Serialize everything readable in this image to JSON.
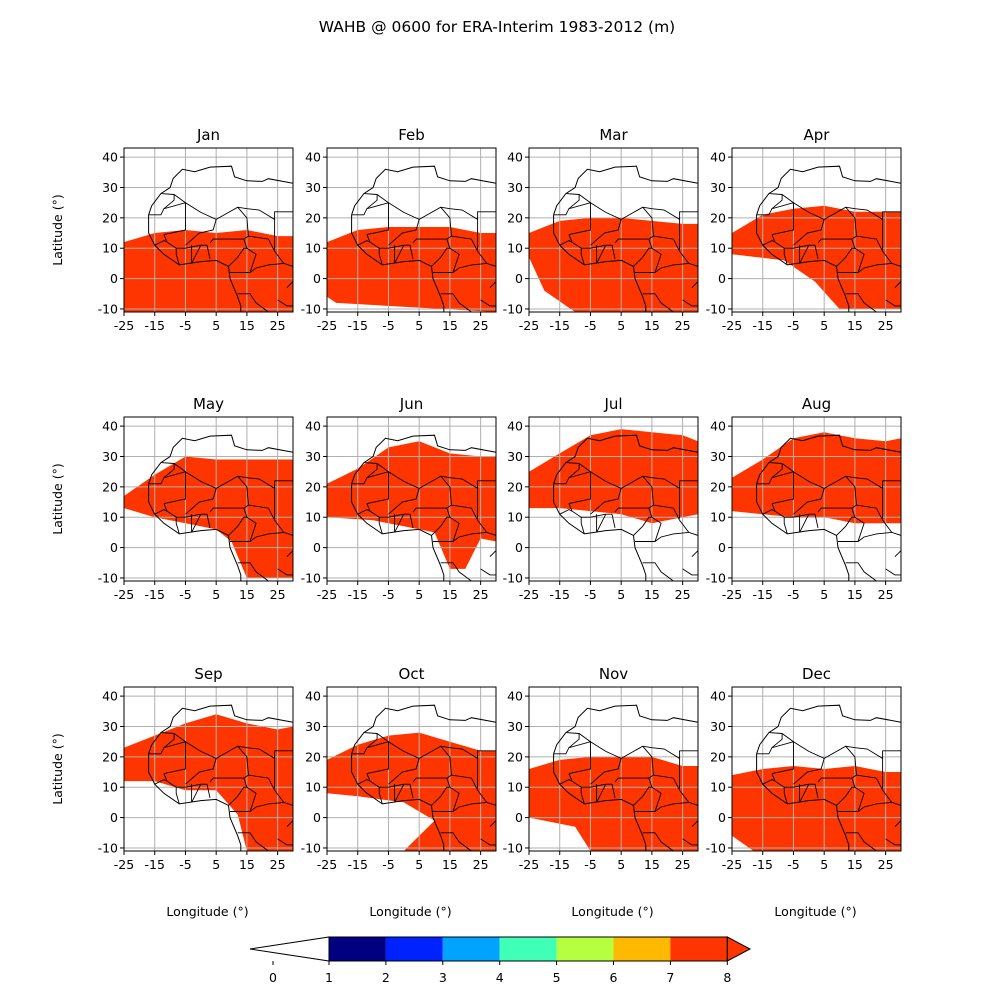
{
  "title": "WAHB @ 0600 for ERA-Interim 1983-2012 (m)",
  "colors": {
    "levels": [
      "#ffffff",
      "#000080",
      "#0022ff",
      "#00a4ff",
      "#40ffb6",
      "#b6ff40",
      "#ffb900",
      "#ff3500"
    ],
    "land_fill": "#ff3500",
    "grid": "#b0b0b0",
    "coast": "#000000"
  },
  "chart_data": {
    "type": "heatmap",
    "variable": "WAHB",
    "x_ticks": [
      "-25",
      "-15",
      "-5",
      "5",
      "15",
      "25"
    ],
    "y_ticks": [
      "40",
      "30",
      "20",
      "10",
      "0",
      "-10"
    ],
    "xlim": [
      -25,
      30
    ],
    "ylim": [
      -11,
      43
    ],
    "grid": true,
    "xlabel": "Longitude (°)",
    "ylabel": "Latitude (°)",
    "panels": [
      {
        "name": "Jan",
        "region": [
          [
            -25,
            12
          ],
          [
            -15,
            15
          ],
          [
            -5,
            16
          ],
          [
            5,
            15
          ],
          [
            15,
            16
          ],
          [
            25,
            14
          ],
          [
            30,
            14
          ],
          [
            30,
            -11
          ],
          [
            -25,
            -11
          ]
        ]
      },
      {
        "name": "Feb",
        "region": [
          [
            -25,
            12
          ],
          [
            -15,
            16
          ],
          [
            -5,
            17
          ],
          [
            5,
            17
          ],
          [
            15,
            17
          ],
          [
            25,
            15
          ],
          [
            30,
            15
          ],
          [
            30,
            -11
          ],
          [
            -22,
            -8
          ],
          [
            -25,
            -6
          ]
        ]
      },
      {
        "name": "Mar",
        "region": [
          [
            -25,
            15
          ],
          [
            -15,
            19
          ],
          [
            -5,
            20
          ],
          [
            5,
            20
          ],
          [
            15,
            19
          ],
          [
            25,
            18
          ],
          [
            30,
            18
          ],
          [
            30,
            -11
          ],
          [
            -10,
            -11
          ],
          [
            -20,
            -4
          ],
          [
            -25,
            7
          ]
        ]
      },
      {
        "name": "Apr",
        "region": [
          [
            -25,
            15
          ],
          [
            -15,
            21
          ],
          [
            -5,
            23
          ],
          [
            5,
            24
          ],
          [
            15,
            22
          ],
          [
            25,
            22
          ],
          [
            30,
            22
          ],
          [
            30,
            -10
          ],
          [
            20,
            -10
          ],
          [
            10,
            -10
          ],
          [
            2,
            -1
          ],
          [
            -8,
            6
          ],
          [
            -25,
            8
          ]
        ]
      },
      {
        "name": "May",
        "region": [
          [
            -25,
            17
          ],
          [
            -15,
            24
          ],
          [
            -5,
            30
          ],
          [
            5,
            29
          ],
          [
            15,
            29
          ],
          [
            25,
            29
          ],
          [
            30,
            29
          ],
          [
            30,
            -10
          ],
          [
            15,
            -10
          ],
          [
            10,
            2
          ],
          [
            5,
            6
          ],
          [
            -5,
            8
          ],
          [
            -15,
            10
          ],
          [
            -25,
            13
          ]
        ]
      },
      {
        "name": "Jun",
        "region": [
          [
            -25,
            21
          ],
          [
            -15,
            26
          ],
          [
            -5,
            33
          ],
          [
            5,
            35
          ],
          [
            15,
            31
          ],
          [
            25,
            30
          ],
          [
            30,
            30
          ],
          [
            30,
            2
          ],
          [
            25,
            3
          ],
          [
            20,
            -7
          ],
          [
            15,
            -7
          ],
          [
            10,
            5
          ],
          [
            0,
            7
          ],
          [
            -10,
            9
          ],
          [
            -25,
            10
          ]
        ]
      },
      {
        "name": "Jul",
        "region": [
          [
            -25,
            25
          ],
          [
            -15,
            31
          ],
          [
            -5,
            37
          ],
          [
            5,
            39
          ],
          [
            15,
            38
          ],
          [
            25,
            37
          ],
          [
            30,
            35
          ],
          [
            30,
            11
          ],
          [
            15,
            8
          ],
          [
            5,
            11
          ],
          [
            -5,
            12
          ],
          [
            -15,
            13
          ],
          [
            -25,
            13
          ]
        ]
      },
      {
        "name": "Aug",
        "region": [
          [
            -25,
            23
          ],
          [
            -15,
            29
          ],
          [
            -5,
            36
          ],
          [
            5,
            38
          ],
          [
            15,
            36
          ],
          [
            25,
            35
          ],
          [
            30,
            36
          ],
          [
            30,
            8
          ],
          [
            15,
            8
          ],
          [
            5,
            10
          ],
          [
            -5,
            10
          ],
          [
            -15,
            11
          ],
          [
            -25,
            12
          ]
        ]
      },
      {
        "name": "Sep",
        "region": [
          [
            -25,
            23
          ],
          [
            -15,
            27
          ],
          [
            -5,
            31
          ],
          [
            5,
            34
          ],
          [
            15,
            31
          ],
          [
            25,
            29
          ],
          [
            30,
            30
          ],
          [
            30,
            -11
          ],
          [
            15,
            -11
          ],
          [
            12,
            1
          ],
          [
            5,
            9
          ],
          [
            -5,
            9
          ],
          [
            -15,
            12
          ],
          [
            -25,
            12
          ]
        ]
      },
      {
        "name": "Oct",
        "region": [
          [
            -25,
            19
          ],
          [
            -15,
            24
          ],
          [
            -5,
            27
          ],
          [
            5,
            28
          ],
          [
            15,
            25
          ],
          [
            25,
            22
          ],
          [
            30,
            22
          ],
          [
            30,
            -11
          ],
          [
            0,
            -11
          ],
          [
            10,
            -1
          ],
          [
            0,
            5
          ],
          [
            -15,
            7
          ],
          [
            -25,
            8
          ]
        ]
      },
      {
        "name": "Nov",
        "region": [
          [
            -25,
            16
          ],
          [
            -15,
            19
          ],
          [
            -5,
            20
          ],
          [
            5,
            20
          ],
          [
            15,
            20
          ],
          [
            25,
            17
          ],
          [
            30,
            17
          ],
          [
            30,
            -11
          ],
          [
            -5,
            -11
          ],
          [
            -10,
            -3
          ],
          [
            -25,
            0
          ]
        ]
      },
      {
        "name": "Dec",
        "region": [
          [
            -25,
            14
          ],
          [
            -15,
            16
          ],
          [
            -5,
            17
          ],
          [
            5,
            16
          ],
          [
            15,
            17
          ],
          [
            25,
            15
          ],
          [
            30,
            15
          ],
          [
            30,
            -11
          ],
          [
            -18,
            -11
          ],
          [
            -25,
            -6
          ]
        ]
      }
    ],
    "colorbar": {
      "ticks": [
        "0",
        "1",
        "2",
        "3",
        "4",
        "5",
        "6",
        "7",
        "8"
      ],
      "extend": "both"
    }
  },
  "coastline": [
    [
      -17,
      21
    ],
    [
      -16,
      24
    ],
    [
      -13,
      28
    ],
    [
      -10,
      30
    ],
    [
      -9,
      33
    ],
    [
      -6,
      36
    ],
    [
      -2,
      35.2
    ],
    [
      3,
      36.7
    ],
    [
      10,
      37
    ],
    [
      11,
      33.5
    ],
    [
      15,
      32.2
    ],
    [
      20,
      32
    ],
    [
      22,
      32.9
    ],
    [
      30,
      31.4
    ]
  ],
  "gulf_coast": [
    [
      -17,
      21
    ],
    [
      -17,
      15
    ],
    [
      -15,
      11
    ],
    [
      -12,
      8
    ],
    [
      -7,
      4.5
    ],
    [
      0,
      5.6
    ],
    [
      5,
      6
    ],
    [
      9,
      4
    ],
    [
      9.5,
      0
    ],
    [
      12,
      -6
    ],
    [
      13,
      -9
    ],
    [
      13,
      -11
    ]
  ],
  "borders": [
    [
      [
        -13,
        28
      ],
      [
        -8.7,
        27.7
      ],
      [
        -5,
        25
      ],
      [
        0,
        21.8
      ],
      [
        5,
        19.5
      ],
      [
        12,
        23.5
      ],
      [
        15,
        23
      ],
      [
        19,
        22.6
      ],
      [
        24,
        19.5
      ],
      [
        24,
        22
      ],
      [
        30,
        22
      ]
    ],
    [
      [
        -17,
        21
      ],
      [
        -13,
        21
      ],
      [
        -12,
        23
      ],
      [
        -5,
        25
      ],
      [
        -5,
        16
      ],
      [
        -12,
        14.5
      ]
    ],
    [
      [
        -8.7,
        27.7
      ],
      [
        -8.7,
        25.8
      ],
      [
        -12,
        23
      ]
    ],
    [
      [
        5,
        19.5
      ],
      [
        4,
        16
      ],
      [
        -0.5,
        15
      ],
      [
        -5,
        11
      ]
    ],
    [
      [
        12,
        23.5
      ],
      [
        15,
        20
      ],
      [
        15.5,
        14
      ],
      [
        14,
        13
      ],
      [
        4,
        13
      ],
      [
        3,
        11.7
      ]
    ],
    [
      [
        15.5,
        14
      ],
      [
        22,
        13
      ],
      [
        24,
        9
      ],
      [
        27,
        5
      ],
      [
        30,
        4
      ]
    ],
    [
      [
        14,
        13
      ],
      [
        15,
        10
      ],
      [
        18,
        8
      ],
      [
        16,
        2
      ],
      [
        14,
        2
      ],
      [
        9.5,
        2
      ]
    ],
    [
      [
        24,
        19.5
      ],
      [
        24,
        9.5
      ]
    ],
    [
      [
        9,
        4
      ],
      [
        12,
        7
      ],
      [
        14,
        10
      ],
      [
        15,
        10
      ]
    ],
    [
      [
        -12,
        14.5
      ],
      [
        -11,
        12
      ],
      [
        -8,
        10
      ],
      [
        -5,
        10
      ],
      [
        0,
        11
      ],
      [
        2,
        11
      ],
      [
        3,
        6.5
      ]
    ],
    [
      [
        -8,
        10
      ],
      [
        -8,
        8
      ],
      [
        -7,
        4.5
      ]
    ],
    [
      [
        -3,
        11
      ],
      [
        -3,
        5
      ],
      [
        0,
        11
      ]
    ],
    [
      [
        -15,
        11
      ],
      [
        -12,
        12.5
      ],
      [
        -11,
        12
      ]
    ],
    [
      [
        16,
        2
      ],
      [
        18,
        3.5
      ],
      [
        22,
        4.5
      ],
      [
        27,
        5
      ]
    ],
    [
      [
        12,
        -5
      ],
      [
        16,
        -5
      ],
      [
        18,
        -8
      ],
      [
        22,
        -11
      ],
      [
        24,
        -11
      ]
    ],
    [
      [
        28,
        -3
      ],
      [
        30,
        -1
      ],
      [
        30,
        -11
      ]
    ],
    [
      [
        25,
        -7
      ],
      [
        28,
        -9
      ],
      [
        30,
        -9
      ]
    ]
  ]
}
